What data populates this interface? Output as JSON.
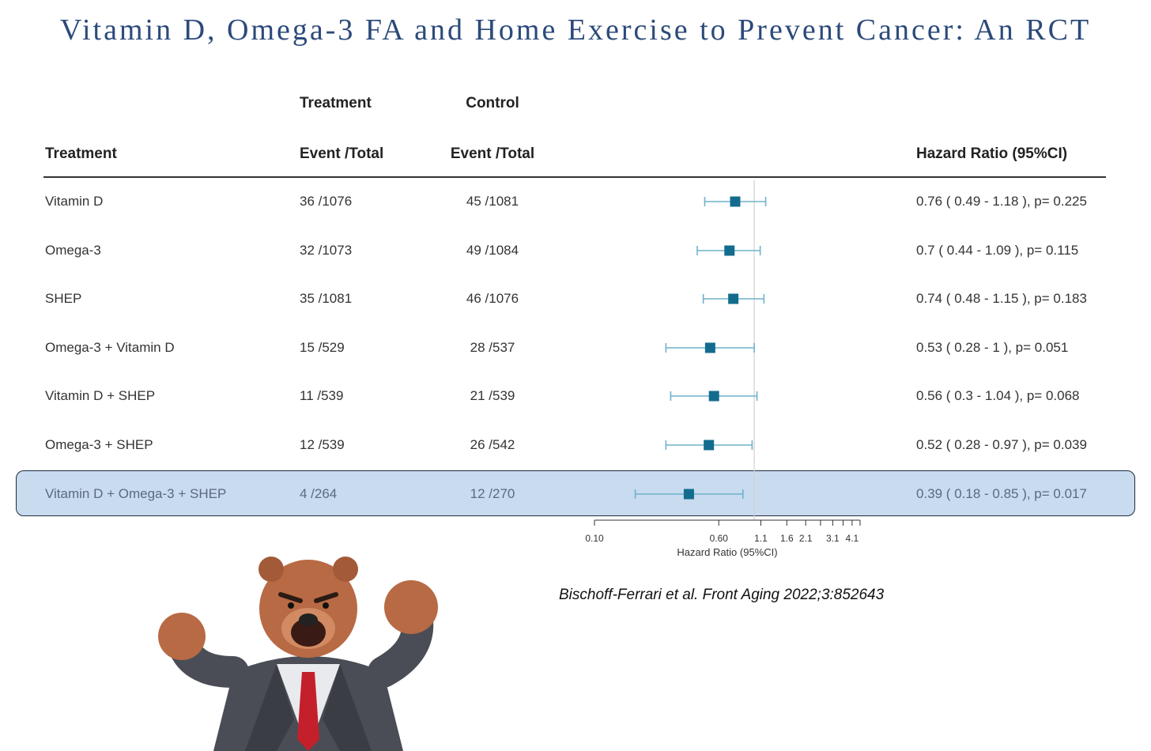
{
  "title": "Vitamin D, Omega-3 FA and Home Exercise to Prevent Cancer: An RCT",
  "headers": {
    "treatment_group": "Treatment",
    "control_group": "Control",
    "treatment_col": "Treatment",
    "treatment_event_total": "Event /Total",
    "control_event_total": "Event /Total",
    "hazard_ratio": "Hazard Ratio (95%CI)"
  },
  "rows": [
    {
      "label": "Vitamin D",
      "treatment": "36 /1076",
      "control": "45 /1081",
      "hr_text": "0.76  ( 0.49 - 1.18 ), p= 0.225"
    },
    {
      "label": "Omega-3",
      "treatment": "32 /1073",
      "control": "49 /1084",
      "hr_text": "0.7  ( 0.44 - 1.09 ), p= 0.115"
    },
    {
      "label": "SHEP",
      "treatment": "35 /1081",
      "control": "46 /1076",
      "hr_text": "0.74  ( 0.48 - 1.15 ), p= 0.183"
    },
    {
      "label": "Omega-3 + Vitamin D",
      "treatment": "15 /529",
      "control": "28 /537",
      "hr_text": "0.53  ( 0.28 - 1 ), p= 0.051"
    },
    {
      "label": "Vitamin D + SHEP",
      "treatment": "11 /539",
      "control": "21 /539",
      "hr_text": "0.56  ( 0.3 - 1.04 ), p= 0.068"
    },
    {
      "label": "Omega-3 + SHEP",
      "treatment": "12 /539",
      "control": "26 /542",
      "hr_text": "0.52  ( 0.28 - 0.97 ), p= 0.039"
    },
    {
      "label": "Vitamin D + Omega-3 + SHEP",
      "treatment": "4 /264",
      "control": "12 /270",
      "hr_text": "0.39  ( 0.18 - 0.85 ), p= 0.017",
      "highlighted": true
    }
  ],
  "chart_data": {
    "type": "forest",
    "scale": "log",
    "xlabel": "Hazard Ratio (95%CI)",
    "tick_labels": [
      "0.10",
      "0.60",
      "1.1",
      "1.6",
      "2.1",
      "3.1",
      "4.1"
    ],
    "xlim": [
      0.1,
      4.6
    ],
    "reference_line": 1,
    "categories": [
      "Vitamin D",
      "Omega-3",
      "SHEP",
      "Omega-3 + Vitamin D",
      "Vitamin D + SHEP",
      "Omega-3 + SHEP",
      "Vitamin D + Omega-3 + SHEP"
    ],
    "hr": [
      0.76,
      0.7,
      0.74,
      0.53,
      0.56,
      0.52,
      0.39
    ],
    "ci_low": [
      0.49,
      0.44,
      0.48,
      0.28,
      0.3,
      0.28,
      0.18
    ],
    "ci_high": [
      1.18,
      1.09,
      1.15,
      1,
      1.04,
      0.97,
      0.85
    ],
    "marker_color": "#136c8e",
    "line_color": "#6fb2cc"
  },
  "citation": "Bischoff-Ferrari et al. Front Aging 2022;3:852643",
  "mascot_icon": "angry-bear-businessman-icon"
}
